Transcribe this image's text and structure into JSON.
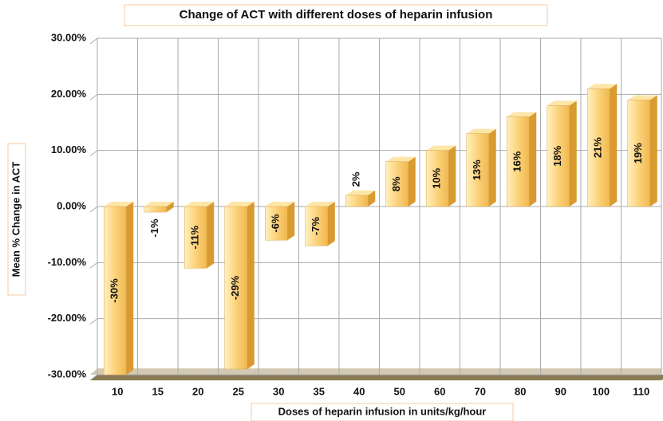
{
  "chart_data": {
    "type": "bar3d",
    "title": "Change of ACT with different doses of heparin infusion",
    "x_label": "Doses of heparin infusion in units/kg/hour",
    "y_label": "Mean % Change in ACT",
    "categories": [
      "10",
      "15",
      "20",
      "25",
      "30",
      "35",
      "40",
      "50",
      "60",
      "70",
      "80",
      "90",
      "100",
      "110"
    ],
    "values": [
      -30,
      -1,
      -11,
      -29,
      -6,
      -7,
      2,
      8,
      10,
      13,
      16,
      18,
      21,
      19
    ],
    "value_labels": [
      "-30%",
      "-1%",
      "-11%",
      "-29%",
      "-6%",
      "-7%",
      "2%",
      "8%",
      "10%",
      "13%",
      "16%",
      "18%",
      "21%",
      "19%"
    ],
    "color": "#fcd27a",
    "ylim": [
      -30,
      30
    ],
    "yticks": [
      {
        "value": -30,
        "label": "-30.00%"
      },
      {
        "value": -20,
        "label": "-20.00%"
      },
      {
        "value": -10,
        "label": "-10.00%"
      },
      {
        "value": 0,
        "label": "0.00%"
      },
      {
        "value": 10,
        "label": "10.00%"
      },
      {
        "value": 20,
        "label": "20.00%"
      },
      {
        "value": 30,
        "label": "30.00%"
      }
    ],
    "grid": true
  }
}
